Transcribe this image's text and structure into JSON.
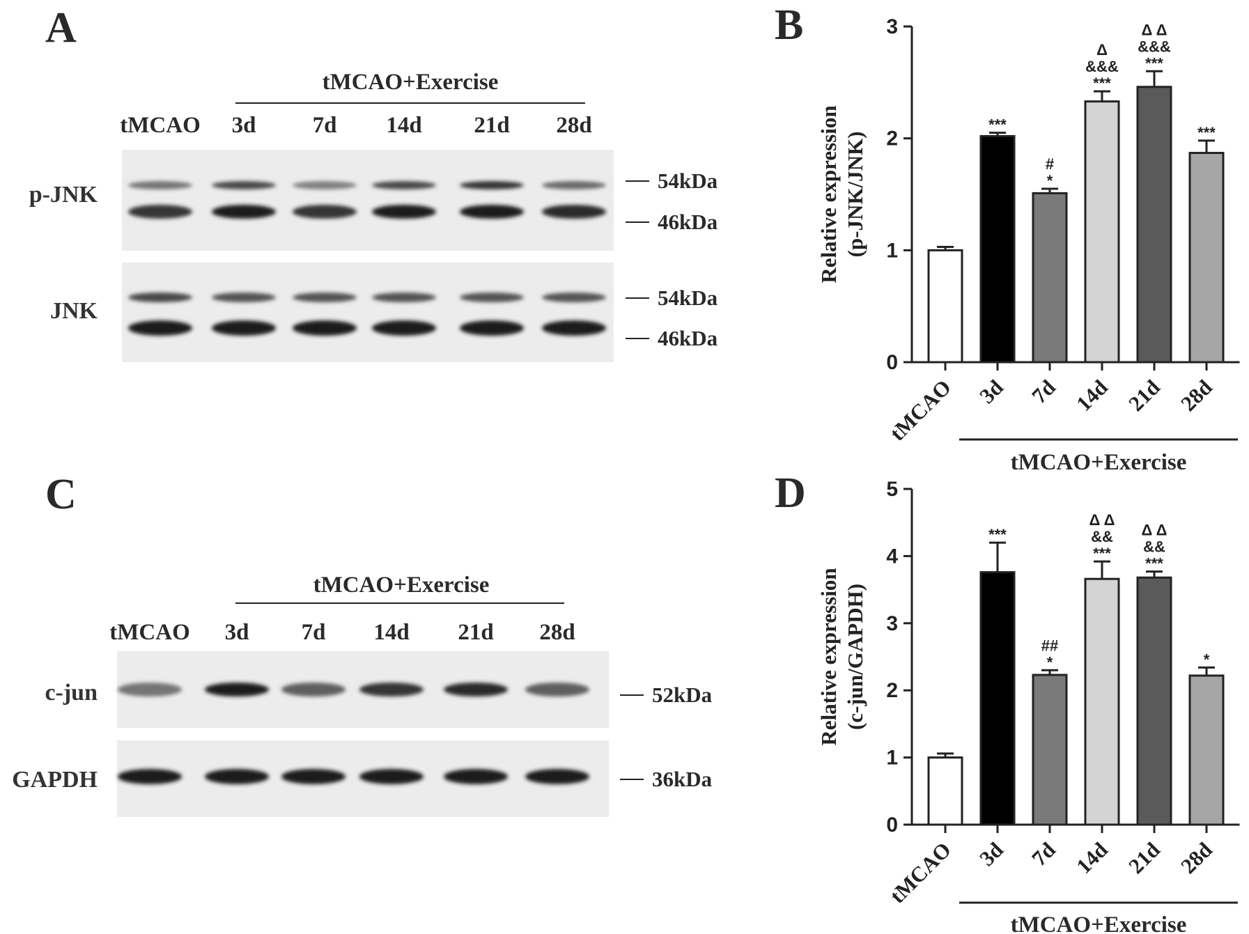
{
  "panels": {
    "A": {
      "label": "A",
      "group_label": "tMCAO+Exercise",
      "lanes": [
        "tMCAO",
        "3d",
        "7d",
        "14d",
        "21d",
        "28d"
      ],
      "blots": [
        {
          "name": "p-JNK",
          "markers": [
            "54kDa",
            "46kDa"
          ],
          "band_intensity_upper": [
            0.55,
            0.75,
            0.5,
            0.75,
            0.85,
            0.6
          ],
          "band_intensity_lower": [
            0.85,
            0.95,
            0.85,
            0.95,
            0.95,
            0.9
          ]
        },
        {
          "name": "JNK",
          "markers": [
            "54kDa",
            "46kDa"
          ],
          "band_intensity_upper": [
            0.75,
            0.7,
            0.7,
            0.7,
            0.7,
            0.7
          ],
          "band_intensity_lower": [
            0.95,
            0.95,
            0.95,
            0.95,
            0.95,
            0.95
          ]
        }
      ]
    },
    "C": {
      "label": "C",
      "group_label": "tMCAO+Exercise",
      "lanes": [
        "tMCAO",
        "3d",
        "7d",
        "14d",
        "21d",
        "28d"
      ],
      "blots": [
        {
          "name": "c-jun",
          "markers": [
            "52kDa"
          ],
          "band_intensity": [
            0.55,
            0.95,
            0.65,
            0.85,
            0.9,
            0.65
          ]
        },
        {
          "name": "GAPDH",
          "markers": [
            "36kDa"
          ],
          "band_intensity": [
            0.95,
            0.95,
            0.95,
            0.95,
            0.95,
            0.95
          ]
        }
      ]
    }
  },
  "chart_data": [
    {
      "panel": "B",
      "type": "bar",
      "ylabel_lines": [
        "Relative expression",
        "(p-JNK/JNK)"
      ],
      "categories": [
        "tMCAO",
        "3d",
        "7d",
        "14d",
        "21d",
        "28d"
      ],
      "group_label": "tMCAO+Exercise",
      "values": [
        1.0,
        2.02,
        1.51,
        2.33,
        2.46,
        1.87
      ],
      "errors": [
        0.03,
        0.03,
        0.04,
        0.09,
        0.14,
        0.11
      ],
      "annotations": [
        [],
        [
          "***"
        ],
        [
          "#",
          "*"
        ],
        [
          "Δ",
          "&&&",
          "***"
        ],
        [
          "Δ Δ",
          "&&&",
          "***"
        ],
        [
          "***"
        ]
      ],
      "bar_colors": [
        "#ffffff",
        "#000000",
        "#7a7a7a",
        "#d4d4d4",
        "#5a5a5a",
        "#a6a6a6"
      ],
      "ylim": [
        0,
        3
      ],
      "yticks": [
        0,
        1,
        2,
        3
      ]
    },
    {
      "panel": "D",
      "type": "bar",
      "ylabel_lines": [
        "Relative expression",
        "(c-jun/GAPDH)"
      ],
      "categories": [
        "tMCAO",
        "3d",
        "7d",
        "14d",
        "21d",
        "28d"
      ],
      "group_label": "tMCAO+Exercise",
      "values": [
        1.0,
        3.76,
        2.23,
        3.66,
        3.68,
        2.22
      ],
      "errors": [
        0.06,
        0.44,
        0.07,
        0.26,
        0.09,
        0.12
      ],
      "annotations": [
        [],
        [
          "***"
        ],
        [
          "##",
          "*"
        ],
        [
          "Δ Δ",
          "&&",
          "***"
        ],
        [
          "Δ Δ",
          "&&",
          "***"
        ],
        [
          "*"
        ]
      ],
      "bar_colors": [
        "#ffffff",
        "#000000",
        "#7a7a7a",
        "#d4d4d4",
        "#5a5a5a",
        "#a6a6a6"
      ],
      "ylim": [
        0,
        5
      ],
      "yticks": [
        0,
        1,
        2,
        3,
        4,
        5
      ]
    }
  ]
}
